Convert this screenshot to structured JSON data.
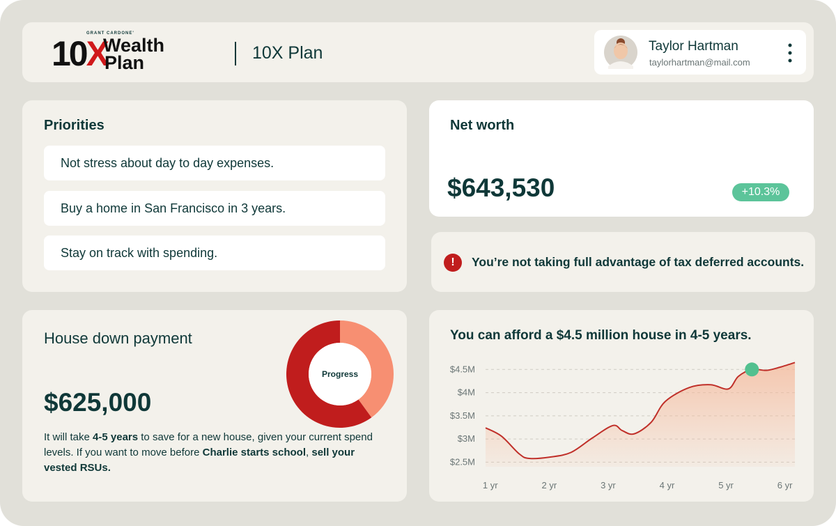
{
  "logo": {
    "brand": "GRANT CARDONE'",
    "mark": "10X",
    "line1": "Wealth",
    "line2": "Plan"
  },
  "header": {
    "title": "10X Plan"
  },
  "user": {
    "name": "Taylor Hartman",
    "email": "taylorhartman@mail.com"
  },
  "priorities": {
    "title": "Priorities",
    "items": [
      "Not stress about day to day expenses.",
      "Buy a home in San Francisco in 3 years.",
      "Stay on track with spending."
    ]
  },
  "net_worth": {
    "title": "Net worth",
    "amount": "$643,530",
    "change": "+10.3%"
  },
  "alert": {
    "icon": "!",
    "text": "You’re not taking full advantage of tax deferred accounts."
  },
  "house": {
    "title": "House down payment",
    "amount": "$625,000",
    "description": [
      {
        "text": "It will take ",
        "bold": false
      },
      {
        "text": "4-5 years",
        "bold": true
      },
      {
        "text": " to save for a new house, given your current spend levels. If you want to move before ",
        "bold": false
      },
      {
        "text": "Charlie starts school",
        "bold": true
      },
      {
        "text": ", ",
        "bold": false
      },
      {
        "text": "sell your vested RSUs.",
        "bold": true
      }
    ]
  },
  "chart_data": [
    {
      "type": "donut",
      "center_label": "Progress",
      "values": [
        40,
        60
      ],
      "colors": [
        "#f78f72",
        "#c01d1d"
      ]
    },
    {
      "type": "line",
      "title": "You can afford a $4.5 million house in 4-5 years.",
      "x": [
        0.92,
        1.19,
        1.49,
        1.66,
        2.02,
        2.37,
        2.73,
        3.08,
        3.24,
        3.44,
        3.73,
        3.97,
        4.38,
        4.74,
        5.04,
        5.21,
        5.44,
        5.69,
        5.92,
        6.17
      ],
      "series": [
        {
          "color": "#c0302a",
          "values": [
            3.24,
            3.06,
            2.68,
            2.58,
            2.61,
            2.71,
            3.02,
            3.29,
            3.18,
            3.11,
            3.36,
            3.81,
            4.11,
            4.17,
            4.08,
            4.35,
            4.5,
            4.48,
            4.55,
            4.65
          ]
        }
      ],
      "highlight": {
        "x": 5.44,
        "y": 4.5,
        "color": "#52c08f"
      },
      "area_color": "#f5b89a",
      "xlim": [
        0.92,
        6.17
      ],
      "xticks": [
        {
          "value": 1,
          "label": "1 yr"
        },
        {
          "value": 2,
          "label": "2 yr"
        },
        {
          "value": 3,
          "label": "3 yr"
        },
        {
          "value": 4,
          "label": "4 yr"
        },
        {
          "value": 5,
          "label": "5 yr"
        },
        {
          "value": 6,
          "label": "6 yr"
        }
      ],
      "ylim": [
        2.4,
        4.7
      ],
      "yticks": [
        {
          "value": 2.5,
          "label": "$2.5M"
        },
        {
          "value": 3,
          "label": "$3M"
        },
        {
          "value": 3.5,
          "label": "$3.5M"
        },
        {
          "value": 4,
          "label": "$4M"
        },
        {
          "value": 4.5,
          "label": "$4.5M"
        }
      ],
      "grid": true
    }
  ]
}
